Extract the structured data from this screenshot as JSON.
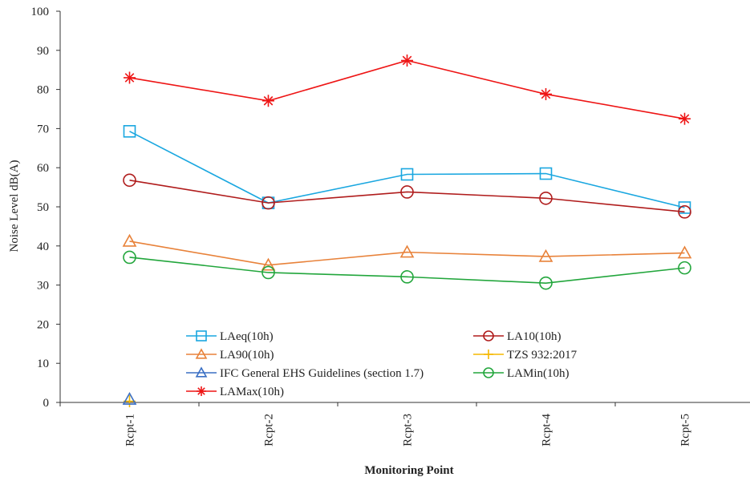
{
  "chart_data": {
    "type": "line",
    "title": "",
    "xlabel": "Monitoring Point",
    "ylabel": "Noise Level dB(A)",
    "ylim": [
      0,
      100
    ],
    "yticks": [
      0,
      10,
      20,
      30,
      40,
      50,
      60,
      70,
      80,
      90,
      100
    ],
    "categories": [
      "Rcpt-1",
      "Rcpt-2",
      "Rcpt-3",
      "Rcpt-4",
      "Rcpt-5"
    ],
    "grid": false,
    "legend_position": "lower-center",
    "series": [
      {
        "name": "LAeq(10h)",
        "color": "#1aa7e0",
        "marker": "square",
        "values": [
          69.3,
          51.0,
          58.3,
          58.5,
          49.8
        ]
      },
      {
        "name": "LA10(10h)",
        "color": "#b01c1c",
        "marker": "circle",
        "values": [
          56.8,
          51.0,
          53.8,
          52.2,
          48.7
        ]
      },
      {
        "name": "LA90(10h)",
        "color": "#e8823a",
        "marker": "triangle",
        "values": [
          41.2,
          35.1,
          38.4,
          37.3,
          38.2
        ]
      },
      {
        "name": "TZS 932:2017",
        "color": "#f5b800",
        "marker": "plus",
        "values": [
          0.3,
          null,
          null,
          null,
          null
        ]
      },
      {
        "name": "IFC General EHS Guidelines (section 1.7)",
        "color": "#3a6fc4",
        "marker": "triangle",
        "values": [
          0.8,
          null,
          null,
          null,
          null
        ]
      },
      {
        "name": "LAMin(10h)",
        "color": "#22a63c",
        "marker": "circle",
        "values": [
          37.1,
          33.2,
          32.1,
          30.5,
          34.4
        ]
      },
      {
        "name": "LAMax(10h)",
        "color": "#ee1515",
        "marker": "star",
        "values": [
          83.0,
          77.1,
          87.4,
          78.8,
          72.5
        ]
      }
    ]
  }
}
